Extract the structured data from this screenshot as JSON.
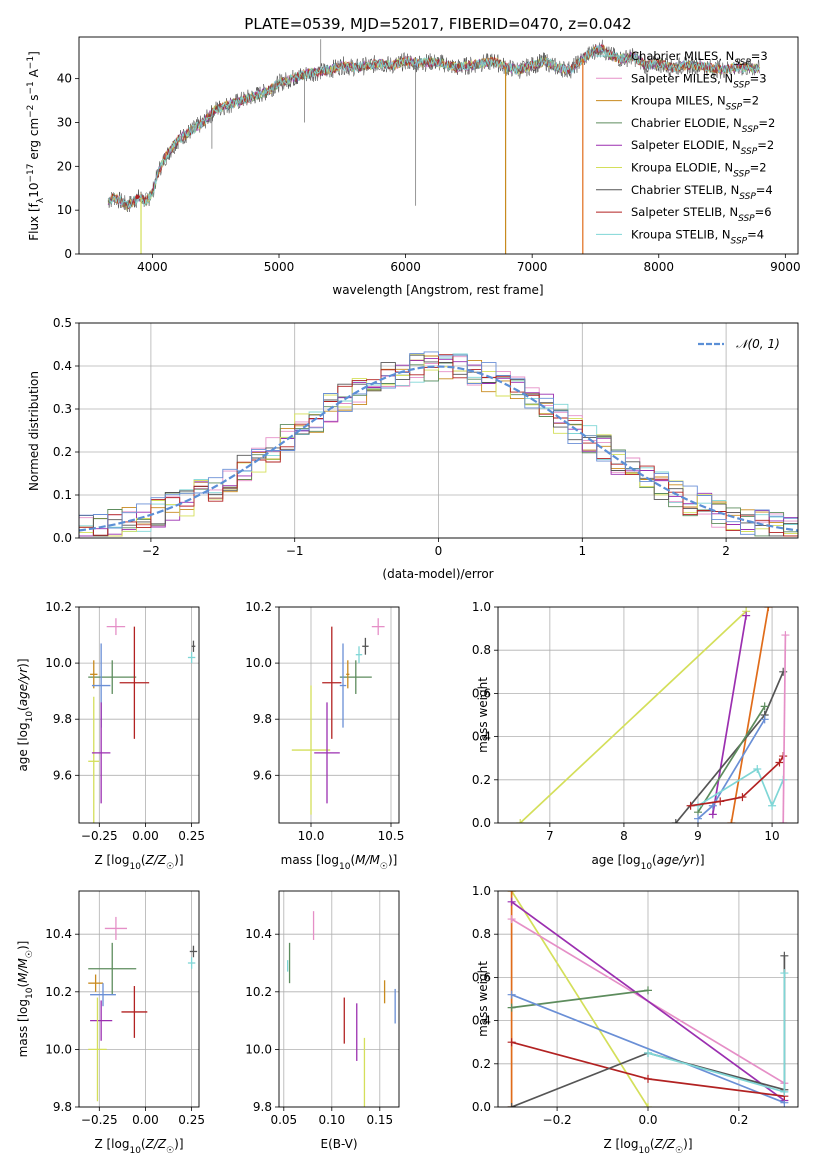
{
  "figure_title": "PLATE=0539, MJD=52017, FIBERID=0470, z=0.042",
  "model_colors": [
    "#7fd6d6",
    "#e58fc7",
    "#c88a1e",
    "#5d8c5d",
    "#9b2fb0",
    "#d4df5a",
    "#555555",
    "#b22222",
    "#7fd6d6"
  ],
  "chart_data": [
    {
      "id": "spectrum",
      "type": "line",
      "xlabel": "wavelength [Angstrom, rest frame]",
      "ylabel": "Flux [f_λ10^-17 erg cm^-2 s^-1 A^-1]",
      "xlim": [
        3420,
        9100
      ],
      "ylim": [
        0,
        49.5
      ],
      "xticks": [
        4000,
        5000,
        6000,
        7000,
        8000,
        9000
      ],
      "yticks": [
        0,
        10,
        20,
        30,
        40
      ],
      "grid": false,
      "legend_position": "top-right",
      "spectrum_x": [
        3650,
        3700,
        3750,
        3800,
        3850,
        3900,
        3950,
        4000,
        4050,
        4100,
        4150,
        4200,
        4300,
        4400,
        4500,
        4600,
        4700,
        4800,
        4900,
        5000,
        5100,
        5200,
        5300,
        5400,
        5500,
        5600,
        5700,
        5800,
        5900,
        6000,
        6100,
        6200,
        6300,
        6400,
        6500,
        6600,
        6700,
        6800,
        6900,
        7000,
        7100,
        7200,
        7300,
        7400,
        7500,
        7550,
        7600,
        7700,
        7800,
        7900,
        8000,
        8100,
        8200,
        8300,
        8400,
        8500,
        8600,
        8700,
        8800
      ],
      "spectrum_y": [
        12,
        13,
        12,
        11,
        12,
        13,
        12,
        14,
        19,
        22,
        24,
        26,
        28,
        30,
        33,
        34,
        35,
        36,
        37,
        39,
        40,
        41,
        41.5,
        42,
        43,
        42.5,
        43,
        43.5,
        43,
        44,
        43.5,
        43.8,
        43.5,
        42.5,
        43,
        43.5,
        44,
        42.5,
        42,
        43,
        44,
        42.5,
        42,
        44.5,
        46.5,
        47,
        45.5,
        44.5,
        45,
        43,
        43.5,
        42.5,
        43,
        43,
        42.5,
        42,
        42.5,
        42.5,
        42.2
      ],
      "drop_lines": [
        {
          "x": 3910,
          "color": "#d4df5a"
        },
        {
          "x": 6790,
          "color": "#c88a1e"
        },
        {
          "x": 7400,
          "color": "#e06c1a"
        }
      ],
      "series": [
        {
          "name": "Chabrier MILES, N_SSP=3",
          "color": "#7fd6d6"
        },
        {
          "name": "Salpeter MILES, N_SSP=3",
          "color": "#e58fc7"
        },
        {
          "name": "Kroupa MILES, N_SSP=2",
          "color": "#c88a1e"
        },
        {
          "name": "Chabrier ELODIE, N_SSP=2",
          "color": "#5d8c5d"
        },
        {
          "name": "Salpeter ELODIE, N_SSP=2",
          "color": "#9b2fb0"
        },
        {
          "name": "Kroupa ELODIE, N_SSP=2",
          "color": "#d4df5a"
        },
        {
          "name": "Chabrier STELIB, N_SSP=4",
          "color": "#555555"
        },
        {
          "name": "Salpeter STELIB, N_SSP=6",
          "color": "#b22222"
        },
        {
          "name": "Kroupa STELIB, N_SSP=4",
          "color": "#7fd6d6"
        }
      ]
    },
    {
      "id": "residuals",
      "type": "line",
      "xlabel": "(data-model)/error",
      "ylabel": "Normed distribution",
      "xlim": [
        -2.5,
        2.5
      ],
      "ylim": [
        0,
        0.5
      ],
      "xticks": [
        -2,
        -1,
        0,
        1,
        2
      ],
      "yticks": [
        0.0,
        0.1,
        0.2,
        0.3,
        0.4,
        0.5
      ],
      "grid": true,
      "legend_position": "top-right",
      "reference_label": "𝒩(0, 1)",
      "reference_color": "#5b8fd6",
      "bin_width": 0.1,
      "series_colors": [
        "#7fd6d6",
        "#e58fc7",
        "#c88a1e",
        "#5d8c5d",
        "#9b2fb0",
        "#d4df5a",
        "#555555",
        "#b22222",
        "#6a8fd6"
      ]
    },
    {
      "id": "age_vs_Z",
      "type": "scatter",
      "xlabel": "Z [log10(Z/Z☉)]",
      "ylabel": "age  [log10(age/yr)]",
      "xlim": [
        -0.36,
        0.29
      ],
      "ylim": [
        9.43,
        10.2
      ],
      "xticks": [
        -0.25,
        0.0,
        0.25
      ],
      "yticks": [
        9.6,
        9.8,
        10.0,
        10.2
      ],
      "grid": true,
      "points": [
        {
          "x": -0.16,
          "y": 10.13,
          "xerr": 0.05,
          "yerr": 0.03,
          "color": "#e58fc7"
        },
        {
          "x": 0.26,
          "y": 10.06,
          "xerr": 0.01,
          "yerr": 0.02,
          "color": "#555555"
        },
        {
          "x": 0.25,
          "y": 10.02,
          "xerr": 0.02,
          "yerr": 0.02,
          "color": "#7fd6d6"
        },
        {
          "x": -0.18,
          "y": 9.95,
          "xerr": 0.13,
          "yerr": 0.06,
          "color": "#5d8c5d"
        },
        {
          "x": -0.28,
          "y": 9.96,
          "xerr": 0.02,
          "yerr": 0.05,
          "color": "#c88a1e"
        },
        {
          "x": -0.06,
          "y": 9.93,
          "xerr": 0.08,
          "yerr": 0.2,
          "color": "#b22222"
        },
        {
          "x": -0.24,
          "y": 9.92,
          "xerr": 0.05,
          "yerr": 0.15,
          "color": "#6a8fd6"
        },
        {
          "x": -0.28,
          "y": 9.65,
          "xerr": 0.03,
          "yerr": 0.23,
          "color": "#d4df5a"
        },
        {
          "x": -0.24,
          "y": 9.68,
          "xerr": 0.05,
          "yerr": 0.18,
          "color": "#9b2fb0"
        }
      ]
    },
    {
      "id": "age_vs_mass",
      "type": "scatter",
      "xlabel": "mass [log10(M/M☉)]",
      "ylabel": "",
      "xlim": [
        9.8,
        10.55
      ],
      "ylim": [
        9.43,
        10.2
      ],
      "xticks": [
        10.0,
        10.5
      ],
      "yticks": [
        9.6,
        9.8,
        10.0,
        10.2
      ],
      "grid": true,
      "points": [
        {
          "x": 10.42,
          "y": 10.13,
          "xerr": 0.04,
          "yerr": 0.03,
          "color": "#e58fc7"
        },
        {
          "x": 10.34,
          "y": 10.06,
          "xerr": 0.02,
          "yerr": 0.03,
          "color": "#555555"
        },
        {
          "x": 10.3,
          "y": 10.03,
          "xerr": 0.02,
          "yerr": 0.03,
          "color": "#7fd6d6"
        },
        {
          "x": 10.28,
          "y": 9.95,
          "xerr": 0.1,
          "yerr": 0.06,
          "color": "#5d8c5d"
        },
        {
          "x": 10.23,
          "y": 9.96,
          "xerr": 0.01,
          "yerr": 0.05,
          "color": "#c88a1e"
        },
        {
          "x": 10.13,
          "y": 9.93,
          "xerr": 0.06,
          "yerr": 0.2,
          "color": "#b22222"
        },
        {
          "x": 10.2,
          "y": 9.92,
          "xerr": 0.02,
          "yerr": 0.15,
          "color": "#6a8fd6"
        },
        {
          "x": 10.0,
          "y": 9.69,
          "xerr": 0.12,
          "yerr": 0.23,
          "color": "#d4df5a"
        },
        {
          "x": 10.1,
          "y": 9.68,
          "xerr": 0.08,
          "yerr": 0.18,
          "color": "#9b2fb0"
        }
      ]
    },
    {
      "id": "weight_vs_age",
      "type": "line",
      "xlabel": "age  [log10(age/yr)]",
      "ylabel": "mass weight",
      "xlim": [
        6.3,
        10.35
      ],
      "ylim": [
        0,
        1.0
      ],
      "xticks": [
        7,
        8,
        9,
        10
      ],
      "yticks": [
        0.0,
        0.2,
        0.4,
        0.6,
        0.8,
        1.0
      ],
      "grid": true,
      "series": [
        {
          "color": "#d4df5a",
          "points": [
            [
              6.6,
              0.0
            ],
            [
              9.65,
              0.98
            ]
          ]
        },
        {
          "color": "#e06c1a",
          "points": [
            [
              9.45,
              0.0
            ],
            [
              9.95,
              1.0
            ]
          ]
        },
        {
          "color": "#9b2fb0",
          "points": [
            [
              9.2,
              0.04
            ],
            [
              9.65,
              0.96
            ]
          ]
        },
        {
          "color": "#555555",
          "points": [
            [
              8.7,
              0.0
            ],
            [
              9.9,
              0.5
            ],
            [
              10.15,
              0.7
            ]
          ]
        },
        {
          "color": "#5d8c5d",
          "points": [
            [
              9.0,
              0.05
            ],
            [
              9.9,
              0.54
            ]
          ]
        },
        {
          "color": "#6a8fd6",
          "points": [
            [
              9.0,
              0.02
            ],
            [
              9.2,
              0.08
            ],
            [
              9.9,
              0.48
            ]
          ]
        },
        {
          "color": "#7fd6d6",
          "points": [
            [
              9.0,
              0.08
            ],
            [
              9.8,
              0.25
            ],
            [
              10.0,
              0.08
            ],
            [
              10.15,
              0.2
            ]
          ]
        },
        {
          "color": "#b22222",
          "points": [
            [
              8.9,
              0.08
            ],
            [
              9.3,
              0.1
            ],
            [
              9.6,
              0.12
            ],
            [
              10.1,
              0.28
            ],
            [
              10.15,
              0.31
            ]
          ]
        },
        {
          "color": "#e58fc7",
          "points": [
            [
              10.15,
              0.0
            ],
            [
              10.18,
              0.87
            ]
          ]
        }
      ]
    },
    {
      "id": "mass_vs_Z",
      "type": "scatter",
      "xlabel": "Z [log10(Z/Z☉)]",
      "ylabel": "mass [log10(M/M☉)]",
      "xlim": [
        -0.36,
        0.29
      ],
      "ylim": [
        9.8,
        10.55
      ],
      "xticks": [
        -0.25,
        0.0,
        0.25
      ],
      "yticks": [
        9.8,
        10.0,
        10.2,
        10.4
      ],
      "grid": true,
      "points": [
        {
          "x": -0.16,
          "y": 10.42,
          "xerr": 0.06,
          "yerr": 0.04,
          "color": "#e58fc7"
        },
        {
          "x": 0.26,
          "y": 10.34,
          "xerr": 0.02,
          "yerr": 0.02,
          "color": "#555555"
        },
        {
          "x": 0.25,
          "y": 10.3,
          "xerr": 0.02,
          "yerr": 0.02,
          "color": "#7fd6d6"
        },
        {
          "x": -0.18,
          "y": 10.28,
          "xerr": 0.13,
          "yerr": 0.09,
          "color": "#5d8c5d"
        },
        {
          "x": -0.27,
          "y": 10.23,
          "xerr": 0.04,
          "yerr": 0.03,
          "color": "#c88a1e"
        },
        {
          "x": -0.23,
          "y": 10.19,
          "xerr": 0.07,
          "yerr": 0.04,
          "color": "#6a8fd6"
        },
        {
          "x": -0.06,
          "y": 10.13,
          "xerr": 0.07,
          "yerr": 0.09,
          "color": "#b22222"
        },
        {
          "x": -0.24,
          "y": 10.1,
          "xerr": 0.06,
          "yerr": 0.07,
          "color": "#9b2fb0"
        },
        {
          "x": -0.26,
          "y": 10.0,
          "xerr": 0.05,
          "yerr": 0.18,
          "color": "#d4df5a"
        }
      ]
    },
    {
      "id": "mass_vs_ebv",
      "type": "scatter",
      "xlabel": "E(B-V)",
      "ylabel": "",
      "xlim": [
        0.045,
        0.17
      ],
      "ylim": [
        9.8,
        10.55
      ],
      "xticks": [
        0.05,
        0.1,
        0.15
      ],
      "yticks": [
        9.8,
        10.0,
        10.2,
        10.4,
        ""
      ],
      "grid": true,
      "points": [
        {
          "x": 0.081,
          "y": 10.43,
          "xerr": 0,
          "yerr": 0.05,
          "color": "#e58fc7"
        },
        {
          "x": 0.056,
          "y": 10.3,
          "xerr": 0,
          "yerr": 0.07,
          "color": "#5d8c5d"
        },
        {
          "x": 0.054,
          "y": 10.29,
          "xerr": 0,
          "yerr": 0.02,
          "color": "#7fd6d6"
        },
        {
          "x": 0.155,
          "y": 10.2,
          "xerr": 0,
          "yerr": 0.04,
          "color": "#c88a1e"
        },
        {
          "x": 0.166,
          "y": 10.15,
          "xerr": 0,
          "yerr": 0.06,
          "color": "#6a8fd6"
        },
        {
          "x": 0.113,
          "y": 10.1,
          "xerr": 0,
          "yerr": 0.08,
          "color": "#b22222"
        },
        {
          "x": 0.126,
          "y": 10.06,
          "xerr": 0,
          "yerr": 0.1,
          "color": "#9b2fb0"
        },
        {
          "x": 0.134,
          "y": 9.92,
          "xerr": 0,
          "yerr": 0.12,
          "color": "#d4df5a"
        }
      ]
    },
    {
      "id": "weight_vs_Z",
      "type": "line",
      "xlabel": "Z [log10(Z/Z☉)]",
      "ylabel": "mass weight",
      "xlim": [
        -0.33,
        0.33
      ],
      "ylim": [
        0,
        1.0
      ],
      "xticks": [
        -0.2,
        0.0,
        0.2
      ],
      "yticks": [
        0.0,
        0.2,
        0.4,
        0.6,
        0.8,
        1.0
      ],
      "grid": true,
      "series": [
        {
          "color": "#d4df5a",
          "points": [
            [
              -0.3,
              1.0
            ],
            [
              0.0,
              0.0
            ]
          ]
        },
        {
          "color": "#e06c1a",
          "points": [
            [
              -0.3,
              1.0
            ],
            [
              -0.3,
              0.0
            ]
          ]
        },
        {
          "color": "#e58fc7",
          "points": [
            [
              -0.3,
              0.87
            ],
            [
              0.3,
              0.11
            ]
          ]
        },
        {
          "color": "#9b2fb0",
          "points": [
            [
              -0.3,
              0.95
            ],
            [
              0.3,
              0.03
            ]
          ]
        },
        {
          "color": "#5d8c5d",
          "points": [
            [
              -0.3,
              0.46
            ],
            [
              0.0,
              0.54
            ]
          ]
        },
        {
          "color": "#6a8fd6",
          "points": [
            [
              -0.3,
              0.52
            ],
            [
              0.3,
              0.02
            ]
          ]
        },
        {
          "color": "#b22222",
          "points": [
            [
              -0.3,
              0.3
            ],
            [
              0.0,
              0.13
            ],
            [
              0.3,
              0.05
            ]
          ]
        },
        {
          "color": "#555555",
          "points": [
            [
              -0.3,
              0.0
            ],
            [
              0.0,
              0.25
            ],
            [
              0.3,
              0.08
            ],
            [
              0.3,
              0.7
            ]
          ]
        },
        {
          "color": "#7fd6d6",
          "points": [
            [
              0.0,
              0.25
            ],
            [
              0.3,
              0.07
            ],
            [
              0.3,
              0.62
            ]
          ]
        }
      ]
    }
  ]
}
